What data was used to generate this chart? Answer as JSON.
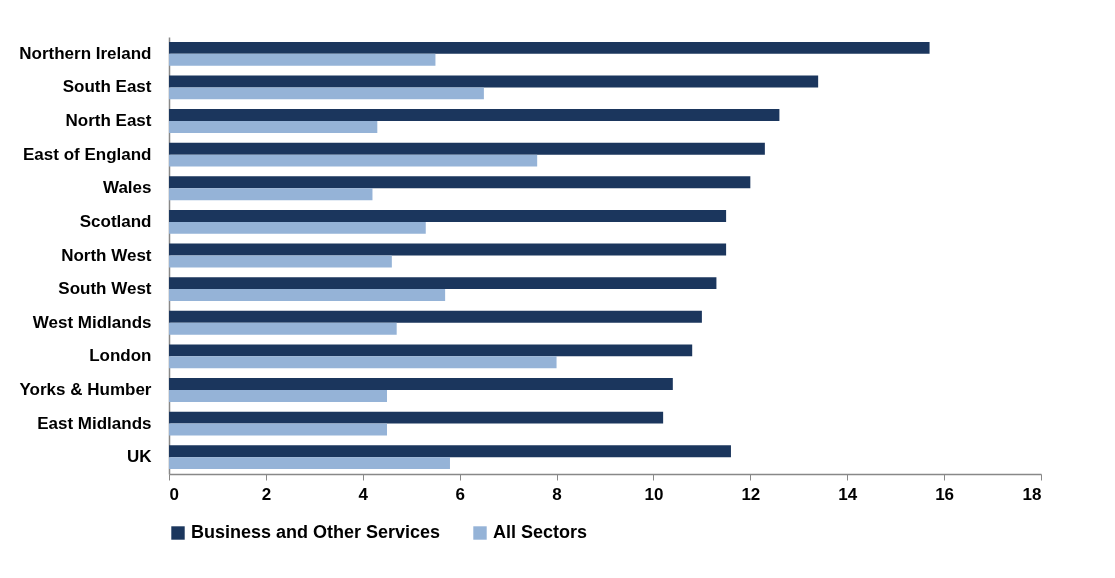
{
  "chart_data": {
    "type": "bar",
    "orientation": "horizontal",
    "categories": [
      "Northern Ireland",
      "South East",
      "North East",
      "East of England",
      "Wales",
      "Scotland",
      "North West",
      "South West",
      "West Midlands",
      "London",
      "Yorks & Humber",
      "East Midlands",
      "UK"
    ],
    "series": [
      {
        "name": "Business and Other Services",
        "color": "#1b365d",
        "values": [
          15.7,
          13.4,
          12.6,
          12.3,
          12.0,
          11.5,
          11.5,
          11.3,
          11.0,
          10.8,
          10.4,
          10.2,
          11.6
        ]
      },
      {
        "name": "All Sectors",
        "color": "#95b3d7",
        "values": [
          5.5,
          6.5,
          4.3,
          7.6,
          4.2,
          5.3,
          4.6,
          5.7,
          4.7,
          8.0,
          4.5,
          4.5,
          5.8
        ]
      }
    ],
    "xlim": [
      0,
      18
    ],
    "xticks": [
      0,
      2,
      4,
      6,
      8,
      10,
      12,
      14,
      16,
      18
    ],
    "grid": false,
    "legend": "bottom"
  }
}
